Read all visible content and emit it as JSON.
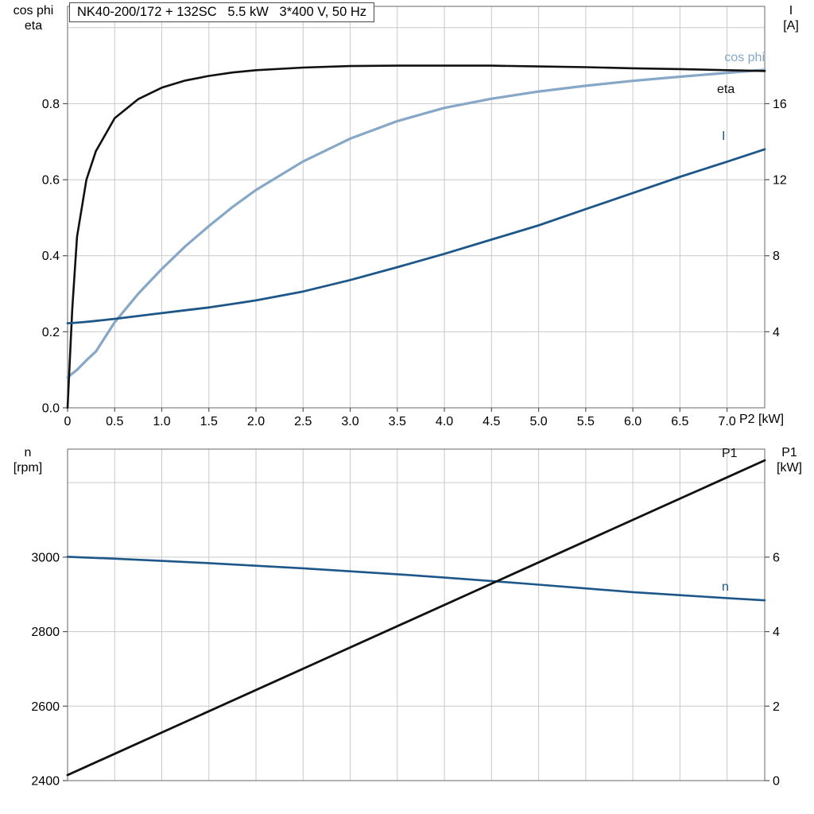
{
  "page": {
    "background": "#ffffff"
  },
  "title_box": {
    "text": "NK40-200/172 + 132SC   5.5 kW   3*400 V, 50 Hz"
  },
  "colors": {
    "grid": "#c9c9c9",
    "frame": "#808080",
    "tick": "#555555",
    "text": "#000000",
    "black_curve": "#111111",
    "light_blue": "#86a7c6",
    "dark_blue": "#1d578a"
  },
  "chart_data": [
    {
      "type": "line",
      "title": "NK40-200/172 + 132SC   5.5 kW   3*400 V, 50 Hz",
      "xlabel": "P2 [kW]",
      "ylabel_left": "cos phi\neta",
      "ylabel_right": "I\n[A]",
      "xlim": [
        0,
        7.4
      ],
      "ylim_left": [
        0,
        1.056
      ],
      "ylim_right": [
        0,
        21.12
      ],
      "grid": true,
      "legend_position": "right-inline",
      "xgrid": [
        0.5,
        1,
        1.5,
        2,
        2.5,
        3,
        3.5,
        4,
        4.5,
        5,
        5.5,
        6,
        6.5,
        7
      ],
      "ygrid_left": [
        0.2,
        0.4,
        0.6,
        0.8,
        1.0
      ],
      "xticks": {
        "values": [
          0,
          0.5,
          1,
          1.5,
          2,
          2.5,
          3,
          3.5,
          4,
          4.5,
          5,
          5.5,
          6,
          6.5,
          7
        ],
        "labels": [
          "0",
          "0.5",
          "1.0",
          "1.5",
          "2.0",
          "2.5",
          "3.0",
          "3.5",
          "4.0",
          "4.5",
          "5.0",
          "5.5",
          "6.0",
          "6.5",
          "7.0"
        ]
      },
      "yticks_left": {
        "values": [
          0,
          0.2,
          0.4,
          0.6,
          0.8
        ],
        "labels": [
          "0.0",
          "0.2",
          "0.4",
          "0.6",
          "0.8"
        ]
      },
      "yticks_right": {
        "values": [
          4,
          8,
          12,
          16
        ],
        "labels": [
          "4",
          "8",
          "12",
          "16"
        ]
      },
      "series": [
        {
          "name": "cos phi",
          "axis": "left",
          "color": "#86a7c6",
          "width": 3.2,
          "x": [
            0,
            0.05,
            0.1,
            0.2,
            0.3,
            0.5,
            0.75,
            1,
            1.25,
            1.5,
            1.75,
            2,
            2.5,
            3,
            3.5,
            4,
            4.5,
            5,
            5.5,
            6,
            6.5,
            7,
            7.4
          ],
          "y": [
            0.08,
            0.09,
            0.1,
            0.125,
            0.148,
            0.225,
            0.3,
            0.365,
            0.425,
            0.478,
            0.528,
            0.573,
            0.648,
            0.708,
            0.754,
            0.789,
            0.813,
            0.832,
            0.847,
            0.86,
            0.871,
            0.881,
            0.889
          ]
        },
        {
          "name": "eta",
          "axis": "left",
          "color": "#111111",
          "width": 2.6,
          "x": [
            0,
            0.05,
            0.1,
            0.2,
            0.3,
            0.5,
            0.75,
            1,
            1.25,
            1.5,
            1.75,
            2,
            2.5,
            3,
            3.5,
            4,
            4.5,
            5,
            5.5,
            6,
            6.5,
            7,
            7.4
          ],
          "y": [
            0,
            0.26,
            0.45,
            0.6,
            0.675,
            0.762,
            0.812,
            0.842,
            0.861,
            0.873,
            0.882,
            0.888,
            0.895,
            0.899,
            0.9,
            0.9,
            0.9,
            0.898,
            0.896,
            0.893,
            0.891,
            0.888,
            0.886
          ]
        },
        {
          "name": "I",
          "axis": "right",
          "color": "#1d578a",
          "width": 2.8,
          "x": [
            0,
            0.05,
            0.1,
            0.2,
            0.3,
            0.5,
            0.75,
            1,
            1.25,
            1.5,
            1.75,
            2,
            2.5,
            3,
            3.5,
            4,
            4.5,
            5,
            5.5,
            6,
            6.5,
            7,
            7.4
          ],
          "y": [
            4.45,
            4.46,
            4.48,
            4.52,
            4.57,
            4.68,
            4.83,
            4.98,
            5.13,
            5.28,
            5.46,
            5.65,
            6.12,
            6.72,
            7.4,
            8.1,
            8.85,
            9.6,
            10.45,
            11.3,
            12.15,
            12.95,
            13.6
          ]
        }
      ]
    },
    {
      "type": "line",
      "title": "",
      "xlabel": "",
      "ylabel_left": "n\n[rpm]",
      "ylabel_right": "P1\n[kW]",
      "xlim": [
        0,
        7.4
      ],
      "ylim_left": [
        2400,
        3290
      ],
      "ylim_right": [
        0,
        8.9
      ],
      "grid": true,
      "legend_position": "right-inline",
      "xgrid": [
        0.5,
        1,
        1.5,
        2,
        2.5,
        3,
        3.5,
        4,
        4.5,
        5,
        5.5,
        6,
        6.5,
        7
      ],
      "ygrid_left": [
        2600,
        2800,
        3000,
        3200
      ],
      "xticks": {
        "values": [],
        "labels": []
      },
      "yticks_left": {
        "values": [
          2400,
          2600,
          2800,
          3000
        ],
        "labels": [
          "2400",
          "2600",
          "2800",
          "3000"
        ]
      },
      "yticks_right": {
        "values": [
          0,
          2,
          4,
          6
        ],
        "labels": [
          "0",
          "2",
          "4",
          "6"
        ]
      },
      "series": [
        {
          "name": "n",
          "axis": "left",
          "color": "#1d578a",
          "width": 2.6,
          "x": [
            0,
            0.5,
            1,
            1.5,
            2,
            2.5,
            3,
            3.5,
            4,
            4.5,
            5,
            5.5,
            6,
            6.5,
            7,
            7.4
          ],
          "y": [
            3001,
            2996,
            2990,
            2984,
            2977,
            2970,
            2962,
            2954,
            2945,
            2936,
            2926,
            2916,
            2906,
            2898,
            2890,
            2884
          ]
        },
        {
          "name": "P1",
          "axis": "right",
          "color": "#111111",
          "width": 2.8,
          "x": [
            0,
            7.4
          ],
          "y": [
            0.15,
            8.6
          ]
        }
      ]
    }
  ]
}
